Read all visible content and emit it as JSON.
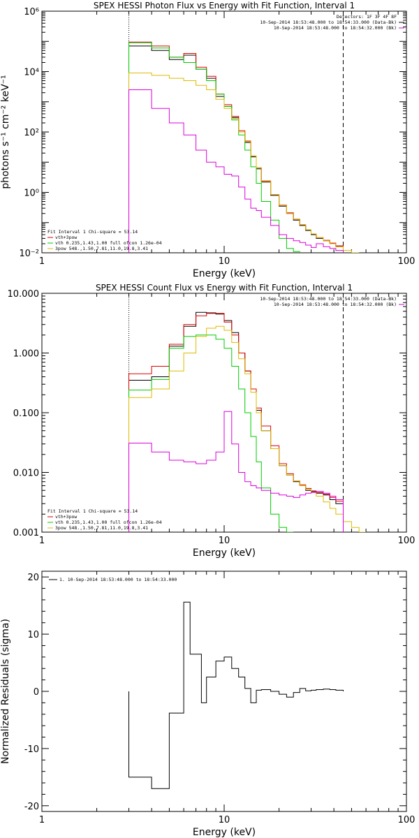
{
  "chart_data": [
    {
      "type": "line",
      "title": "SPEX HESSI Photon Flux vs Energy with Fit Function, Interval 1",
      "xlabel": "Energy (keV)",
      "ylabel": "photons s⁻¹ cm⁻² keV⁻¹",
      "xscale": "log",
      "yscale": "log",
      "xlim": [
        1,
        100
      ],
      "ylim": [
        0.01,
        1000000
      ],
      "xticks": [
        {
          "value": 1,
          "label": "1"
        },
        {
          "value": 10,
          "label": "10"
        },
        {
          "value": 100,
          "label": "100"
        }
      ],
      "yticks": [
        {
          "value": 0.01,
          "label": "10⁻²"
        },
        {
          "value": 1,
          "label": "10⁰"
        },
        {
          "value": 100,
          "label": "10²"
        },
        {
          "value": 10000,
          "label": "10⁴"
        },
        {
          "value": 1000000,
          "label": "10⁶"
        }
      ],
      "vlines": [
        {
          "x": 3.0,
          "style": "dotted",
          "color": "#000000"
        },
        {
          "x": 45.0,
          "style": "dashed",
          "color": "#000000"
        }
      ],
      "legend_top_right": [
        {
          "text": "Detectors: 1F 3F 4F 8F",
          "color": "#000000"
        },
        {
          "text": "10-Sep-2014 18:53:48.000 to 18:54:33.000 (Data-Bk)",
          "color": "#000000"
        },
        {
          "text": "10-Sep-2014 18:53:48.000 to 18:54:32.000 (Bk)",
          "color": "#dd00dd"
        }
      ],
      "legend_bottom_left": [
        {
          "text": "Fit Interval 1   Chi-square = 53.14",
          "color": "#000000"
        },
        {
          "text": "vth+3pow",
          "color": "#dd0000"
        },
        {
          "text": "vth 0.235,1.43,1.00  full ofcon 1.26e-04",
          "color": "#00cc00"
        },
        {
          "text": "3pow 548.,1.50,7.81,11.0,19.8,3.41",
          "color": "#ddbb00"
        }
      ],
      "edges": [
        3,
        4,
        5,
        6,
        7,
        8,
        9,
        10,
        11,
        12,
        13,
        14,
        15,
        16,
        18,
        20,
        22,
        24,
        26,
        28,
        30,
        32,
        35,
        38,
        41,
        45,
        50,
        55,
        60,
        65
      ],
      "series": [
        {
          "color": "#000000",
          "values": [
            70000,
            50000,
            25000,
            35000,
            12000,
            6000,
            1500,
            700,
            300,
            100,
            45,
            15,
            6,
            2.2,
            0.8,
            0.35,
            0.2,
            0.12,
            0.08,
            0.055,
            0.04,
            0.03,
            0.025,
            0.02,
            0.016,
            null,
            null,
            null,
            null
          ]
        },
        {
          "color": "#dd0000",
          "values": [
            95000,
            70000,
            30000,
            40000,
            14000,
            7000,
            1800,
            800,
            330,
            110,
            50,
            16,
            6.5,
            2.4,
            0.85,
            0.38,
            0.21,
            0.13,
            0.085,
            0.058,
            0.042,
            0.032,
            0.026,
            0.021,
            0.017,
            null,
            null,
            null,
            null
          ]
        },
        {
          "color": "#00cc00",
          "values": [
            90000,
            60000,
            30000,
            20000,
            12000,
            5000,
            1800,
            700,
            250,
            80,
            25,
            7,
            2,
            0.5,
            0.12,
            0.03,
            0.014,
            0.011,
            null,
            null,
            null,
            null,
            null,
            null,
            null,
            null,
            null,
            null,
            null
          ]
        },
        {
          "color": "#ddbb00",
          "values": [
            9000,
            7500,
            6000,
            5000,
            3500,
            2500,
            1200,
            600,
            280,
            100,
            48,
            16,
            6.5,
            2.3,
            0.85,
            0.37,
            0.2,
            0.13,
            0.085,
            0.058,
            0.042,
            0.032,
            0.025,
            0.02,
            0.016,
            0.012,
            0.01,
            null,
            null
          ]
        },
        {
          "color": "#dd00dd",
          "values": [
            2500,
            600,
            200,
            80,
            25,
            10,
            7,
            4,
            3.5,
            1.5,
            0.6,
            0.3,
            0.25,
            0.15,
            0.08,
            0.04,
            0.03,
            0.025,
            0.022,
            0.018,
            0.015,
            0.02,
            0.016,
            0.014,
            0.012,
            null,
            null,
            null,
            null
          ]
        }
      ]
    },
    {
      "type": "line",
      "title": "SPEX HESSI Count Flux vs Energy with Fit Function, Interval 1",
      "xlabel": "Energy (keV)",
      "ylabel": "",
      "xscale": "log",
      "yscale": "log",
      "xlim": [
        1,
        100
      ],
      "ylim": [
        0.001,
        10
      ],
      "xticks": [
        {
          "value": 1,
          "label": "1"
        },
        {
          "value": 10,
          "label": "10"
        },
        {
          "value": 100,
          "label": "100"
        }
      ],
      "yticks": [
        {
          "value": 0.001,
          "label": "0.001"
        },
        {
          "value": 0.01,
          "label": "0.010"
        },
        {
          "value": 0.1,
          "label": "0.100"
        },
        {
          "value": 1,
          "label": "1.000"
        },
        {
          "value": 10,
          "label": "10.000"
        }
      ],
      "vlines": [
        {
          "x": 3.0,
          "style": "dotted",
          "color": "#000000"
        },
        {
          "x": 45.0,
          "style": "dashed",
          "color": "#000000"
        }
      ],
      "legend_top_right": [
        {
          "text": "10-Sep-2014 18:53:48.000 to 18:54:33.000 (Data-Bk)",
          "color": "#000000"
        },
        {
          "text": "10-Sep-2014 18:53:48.000 to 18:54:32.000 (Bk)",
          "color": "#dd00dd"
        }
      ],
      "legend_bottom_left": [
        {
          "text": "Fit Interval 1   Chi-square = 53.14",
          "color": "#000000"
        },
        {
          "text": "vth+3pow",
          "color": "#dd0000"
        },
        {
          "text": "vth 0.235,1.43,1.00  full ofcon 1.26e-04",
          "color": "#00cc00"
        },
        {
          "text": "3pow 548.,1.50,7.81,11.0,19.8,3.41",
          "color": "#ddbb00"
        }
      ],
      "edges": [
        3,
        4,
        5,
        6,
        7,
        8,
        9,
        10,
        11,
        12,
        13,
        14,
        15,
        16,
        18,
        20,
        22,
        24,
        26,
        28,
        30,
        32,
        35,
        38,
        41,
        45,
        50,
        55,
        60,
        65
      ],
      "series": [
        {
          "color": "#000000",
          "values": [
            0.35,
            0.4,
            1.3,
            2.8,
            4.8,
            4.7,
            4.5,
            3.5,
            2.2,
            1.0,
            0.5,
            0.25,
            0.11,
            0.05,
            0.025,
            0.013,
            0.009,
            0.007,
            0.006,
            0.005,
            0.0048,
            0.0045,
            0.0042,
            0.0035,
            0.003,
            null,
            null,
            null,
            null
          ]
        },
        {
          "color": "#dd0000",
          "values": [
            0.45,
            0.6,
            1.4,
            3.0,
            4.2,
            4.6,
            4.6,
            3.3,
            2.0,
            1.0,
            0.5,
            0.25,
            0.12,
            0.06,
            0.028,
            0.014,
            0.0095,
            0.0072,
            0.0062,
            0.0054,
            0.0049,
            0.0046,
            0.0043,
            0.0038,
            0.0033,
            null,
            null,
            null,
            null
          ]
        },
        {
          "color": "#00cc00",
          "values": [
            0.24,
            0.36,
            1.2,
            1.9,
            2.0,
            2.0,
            1.7,
            1.2,
            0.6,
            0.25,
            0.1,
            0.04,
            0.015,
            0.0055,
            0.002,
            0.0012,
            0.001,
            null,
            null,
            null,
            null,
            null,
            null,
            null,
            null,
            null,
            null,
            null,
            null
          ]
        },
        {
          "color": "#ddbb00",
          "values": [
            0.18,
            0.25,
            0.5,
            1.0,
            1.9,
            2.6,
            2.8,
            2.4,
            1.5,
            0.8,
            0.45,
            0.22,
            0.1,
            0.05,
            0.025,
            0.013,
            0.009,
            0.0072,
            0.006,
            0.0052,
            0.0046,
            0.004,
            0.0032,
            0.0025,
            0.002,
            0.0015,
            0.0012,
            0.001,
            null
          ]
        },
        {
          "color": "#dd00dd",
          "values": [
            0.031,
            0.022,
            0.016,
            0.015,
            0.014,
            0.016,
            0.022,
            0.105,
            0.03,
            0.01,
            0.007,
            0.006,
            0.0055,
            0.005,
            0.0045,
            0.0042,
            0.004,
            0.0038,
            0.0042,
            0.0045,
            0.0046,
            0.0048,
            0.0045,
            0.004,
            0.0035,
            null,
            null,
            null,
            null
          ]
        }
      ]
    },
    {
      "type": "line",
      "title": "",
      "xlabel": "Energy (keV)",
      "ylabel": "Normalized Residuals (sigma)",
      "xscale": "log",
      "yscale": "linear",
      "xlim": [
        1,
        100
      ],
      "ylim": [
        -21,
        21
      ],
      "xticks": [
        {
          "value": 1,
          "label": "1"
        },
        {
          "value": 10,
          "label": "10"
        },
        {
          "value": 100,
          "label": "100"
        }
      ],
      "yticks": [
        {
          "value": -20,
          "label": "-20"
        },
        {
          "value": -10,
          "label": "-10"
        },
        {
          "value": 0,
          "label": "0"
        },
        {
          "value": 10,
          "label": "10"
        },
        {
          "value": 20,
          "label": "20"
        }
      ],
      "legend_top_left": [
        {
          "text": "1. 10-Sep-2014 18:53:48.000 to 18:54:33.000",
          "color": "#000000"
        }
      ],
      "edges": [
        3,
        4,
        5,
        6,
        6.5,
        7.5,
        8,
        9,
        10,
        11,
        12,
        13,
        14,
        15,
        16,
        18,
        20,
        22,
        24,
        26,
        28,
        30,
        32,
        35,
        38,
        41,
        45
      ],
      "series": [
        {
          "color": "#000000",
          "values": [
            -15,
            -17,
            -3.8,
            15.6,
            6.5,
            -2,
            2.5,
            5.3,
            6,
            4,
            2.5,
            0.5,
            -2,
            0.2,
            0.3,
            0,
            -0.5,
            -1,
            -0.2,
            0.5,
            0.1,
            0.2,
            0.3,
            0.4,
            0.3,
            0.2
          ]
        }
      ]
    }
  ]
}
